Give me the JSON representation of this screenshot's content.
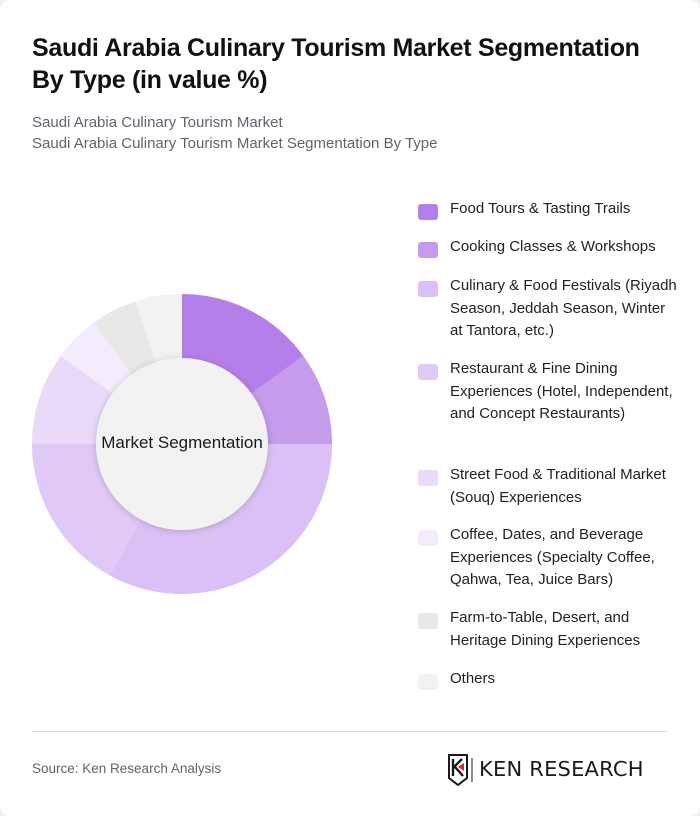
{
  "header": {
    "title": "Saudi Arabia Culinary Tourism Market Segmentation By Type (in value %)",
    "subtitle_1": "Saudi Arabia Culinary Tourism Market",
    "subtitle_2": "Saudi Arabia Culinary Tourism Market Segmentation By Type"
  },
  "chart": {
    "center_label": "Market Segmentation"
  },
  "legend": {
    "items": [
      {
        "label": "Food Tours & Tasting Trails",
        "color": "#b57fe9"
      },
      {
        "label": "Cooking Classes & Workshops",
        "color": "#c59bec"
      },
      {
        "label": "Culinary & Food Festivals (Riyadh Season, Jeddah Season, Winter at Tantora, etc.)",
        "color": "#dbc0f6"
      },
      {
        "label": "Restaurant & Fine Dining Experiences (Hotel, Independent, and Concept Restaurants)",
        "color": "#e0c9f6"
      },
      {
        "label": "Street Food & Traditional Market (Souq) Experiences",
        "color": "#e9daf9"
      },
      {
        "label": "Coffee, Dates, and Beverage Experiences (Specialty Coffee, Qahwa, Tea, Juice Bars)",
        "color": "#f3ecfc"
      },
      {
        "label": "Farm-to-Table, Desert, and Heritage Dining Experiences",
        "color": "#e8e8e8"
      },
      {
        "label": "Others",
        "color": "#f2f2f2"
      }
    ]
  },
  "footer": {
    "source": "Source: Ken Research Analysis",
    "logo_text": "KEN RESEARCH"
  },
  "chart_data": {
    "type": "pie",
    "variant": "donut",
    "title": "Saudi Arabia Culinary Tourism Market Segmentation By Type (in value %)",
    "center_label": "Market Segmentation",
    "categories": [
      "Food Tours & Tasting Trails",
      "Cooking Classes & Workshops",
      "Culinary & Food Festivals (Riyadh Season, Jeddah Season, Winter at Tantora, etc.)",
      "Restaurant & Fine Dining Experiences (Hotel, Independent, and Concept Restaurants)",
      "Street Food & Traditional Market (Souq) Experiences",
      "Coffee, Dates, and Beverage Experiences (Specialty Coffee, Qahwa, Tea, Juice Bars)",
      "Farm-to-Table, Desert, and Heritage Dining Experiences",
      "Others"
    ],
    "values": [
      15,
      10,
      33,
      17,
      10,
      5,
      5,
      5
    ],
    "colors": [
      "#b57fe9",
      "#c59bec",
      "#dbc0f6",
      "#e0c9f6",
      "#e9daf9",
      "#f3ecfc",
      "#e8e8e8",
      "#f2f2f2"
    ],
    "start_angle_deg": 0,
    "direction": "clockwise",
    "legend_position": "right",
    "data_labels": false
  }
}
